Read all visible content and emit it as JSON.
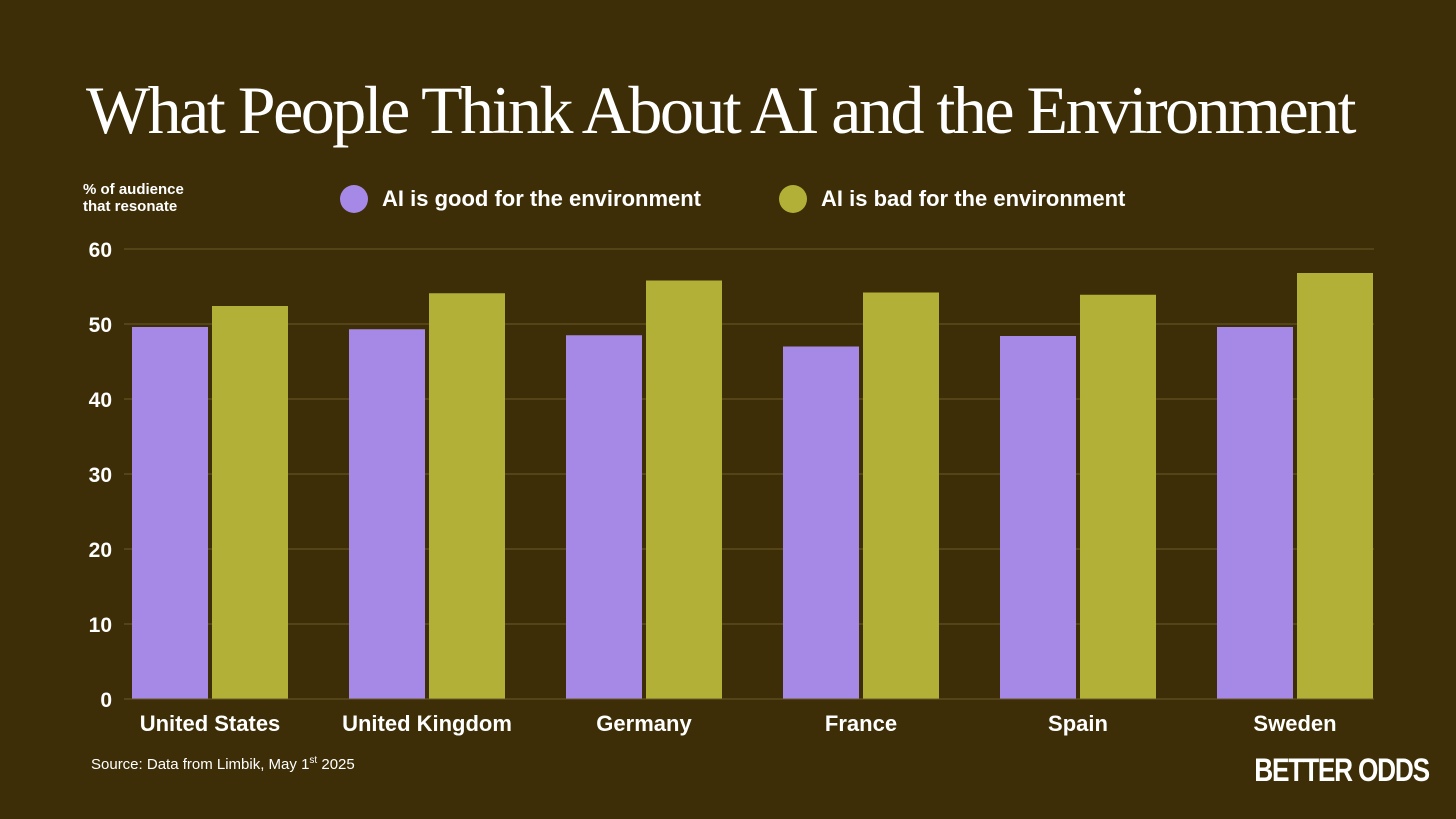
{
  "title": "What People Think About AI and the Environment",
  "source": {
    "text": "Source: Data from Limbik, May 1",
    "superscript": "st",
    "year": " 2025"
  },
  "brand": "BETTER ODDS",
  "colors": {
    "background": "#3d2e07",
    "good": "#a688e6",
    "bad": "#b2b036",
    "gridline": "#6b5a2a",
    "text": "#ffffff"
  },
  "chart_data": {
    "type": "bar",
    "title": "What People Think About AI and the Environment",
    "ylabel_lines": [
      "% of audience",
      "that resonate"
    ],
    "xlabel": "",
    "ylim": [
      0,
      60
    ],
    "yticks": [
      0,
      10,
      20,
      30,
      40,
      50,
      60
    ],
    "grid": true,
    "legend_position": "top",
    "categories": [
      "United States",
      "United Kingdom",
      "Germany",
      "France",
      "Spain",
      "Sweden"
    ],
    "series": [
      {
        "name": "AI is good for the environment",
        "color_key": "good",
        "values": [
          49.6,
          49.3,
          48.5,
          47.0,
          48.4,
          49.6
        ]
      },
      {
        "name": "AI is bad for the environment",
        "color_key": "bad",
        "values": [
          52.4,
          54.1,
          55.8,
          54.2,
          53.9,
          56.8
        ]
      }
    ]
  }
}
